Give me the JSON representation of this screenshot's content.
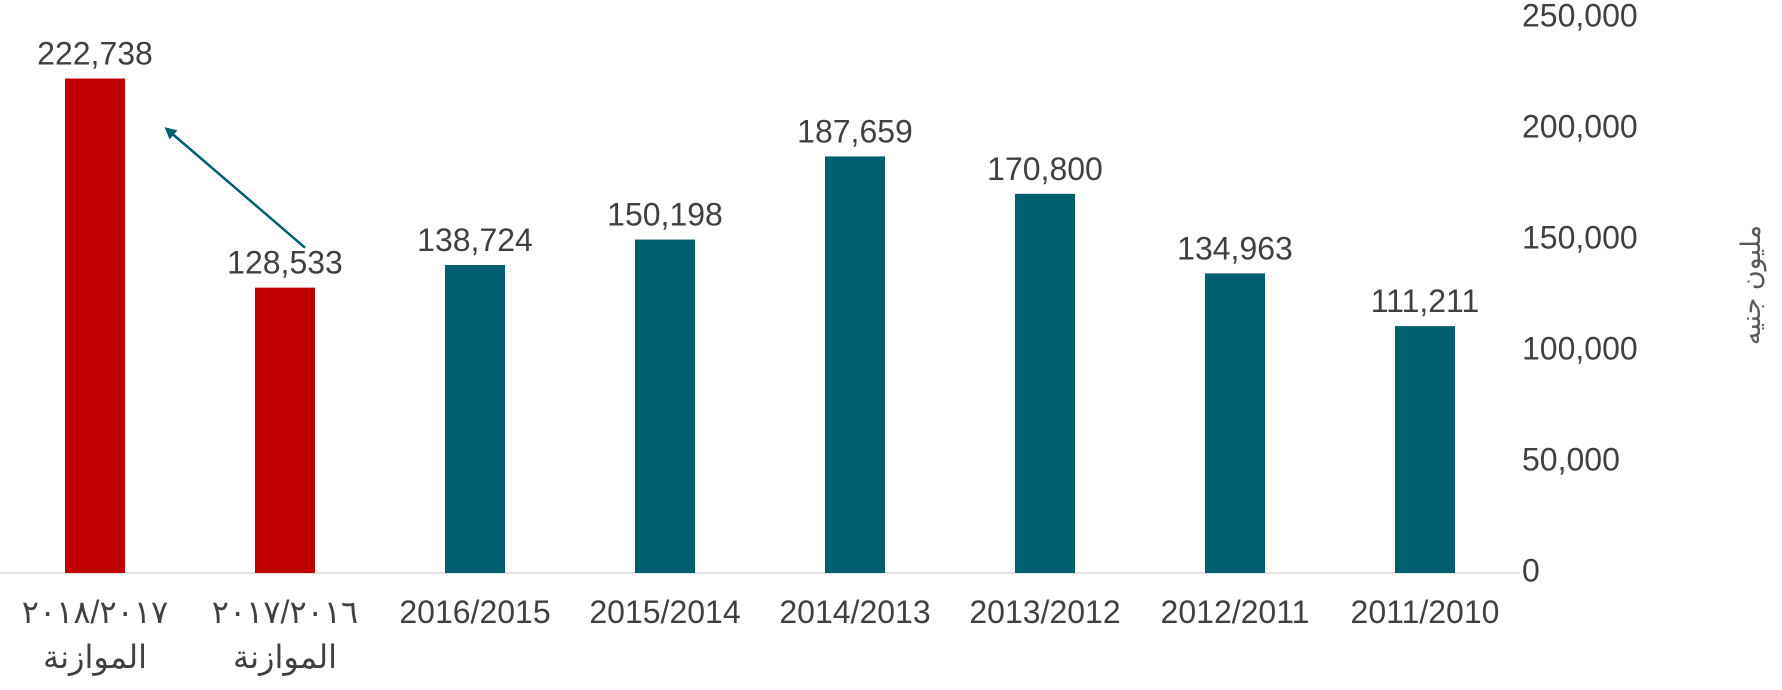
{
  "chart_data": {
    "type": "bar",
    "categories": [
      [
        "٢٠١٨/٢٠١٧",
        "الموازنة"
      ],
      [
        "٢٠١٧/٢٠١٦",
        "الموازنة"
      ],
      [
        "2016/2015"
      ],
      [
        "2015/2014"
      ],
      [
        "2014/2013"
      ],
      [
        "2013/2012"
      ],
      [
        "2012/2011"
      ],
      [
        "2011/2010"
      ]
    ],
    "values": [
      222738,
      128533,
      138724,
      150198,
      187659,
      170800,
      134963,
      111211
    ],
    "data_labels": [
      "222,738",
      "128,533",
      "138,724",
      "150,198",
      "187,659",
      "170,800",
      "134,963",
      "111,211"
    ],
    "bar_colors": [
      "#C00000",
      "#C00000",
      "#005F6E",
      "#005F6E",
      "#005F6E",
      "#005F6E",
      "#005F6E",
      "#005F6E"
    ],
    "y_ticks": [
      0,
      50000,
      100000,
      150000,
      200000,
      250000
    ],
    "y_tick_labels": [
      "0",
      "50,000",
      "100,000",
      "150,000",
      "200,000",
      "250,000"
    ],
    "ylim": [
      0,
      250000
    ],
    "ylabel": "مليون جنيه",
    "y_axis_position": "right",
    "x_axis_direction": "right-to-left",
    "annotation": {
      "type": "arrow",
      "from_category_index": 1,
      "to_category_index": 0,
      "color": "#005F6E"
    },
    "grid": false,
    "legend": "none"
  }
}
